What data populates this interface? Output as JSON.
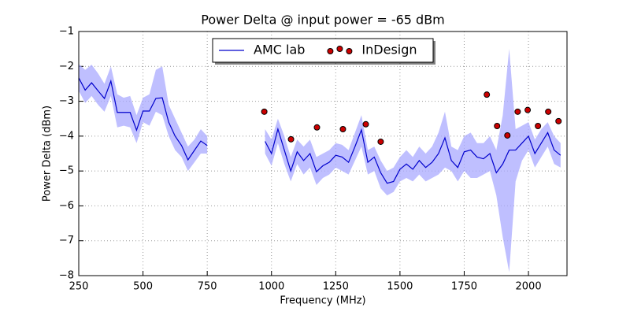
{
  "chart_data": {
    "type": "line",
    "title": "Power Delta @ input power = -65 dBm",
    "xlabel": "Frequency (MHz)",
    "ylabel": "Power Delta (dBm)",
    "xlim": [
      250,
      2150
    ],
    "ylim": [
      -8,
      -1
    ],
    "xticks": [
      250,
      500,
      750,
      1000,
      1250,
      1500,
      1750,
      2000
    ],
    "yticks": [
      {
        "value": -1,
        "label": "−1"
      },
      {
        "value": -2,
        "label": "−2"
      },
      {
        "value": -3,
        "label": "−3"
      },
      {
        "value": -4,
        "label": "−4"
      },
      {
        "value": -5,
        "label": "−5"
      },
      {
        "value": -6,
        "label": "−6"
      },
      {
        "value": -7,
        "label": "−7"
      },
      {
        "value": -8,
        "label": "−8"
      }
    ],
    "grid": true,
    "legend_loc": "upper center",
    "x": [
      250,
      275,
      300,
      325,
      350,
      375,
      400,
      425,
      450,
      475,
      500,
      525,
      550,
      575,
      600,
      625,
      650,
      675,
      700,
      725,
      750,
      775,
      800,
      825,
      850,
      875,
      900,
      925,
      950,
      975,
      1000,
      1025,
      1050,
      1075,
      1100,
      1125,
      1150,
      1175,
      1200,
      1225,
      1250,
      1275,
      1300,
      1325,
      1350,
      1375,
      1400,
      1425,
      1450,
      1475,
      1500,
      1525,
      1550,
      1575,
      1600,
      1625,
      1650,
      1675,
      1700,
      1725,
      1750,
      1775,
      1800,
      1825,
      1850,
      1875,
      1900,
      1925,
      1950,
      1975,
      2000,
      2025,
      2050,
      2075,
      2100,
      2125
    ],
    "series": [
      {
        "name": "AMC lab",
        "color": "#0000cc",
        "band_color": "#aaaaff",
        "values": [
          -2.33,
          -2.68,
          -2.47,
          -2.7,
          -2.92,
          -2.42,
          -3.32,
          -3.32,
          -3.32,
          -3.83,
          -3.28,
          -3.28,
          -2.92,
          -2.9,
          -3.6,
          -4.0,
          -4.27,
          -4.68,
          -4.41,
          -4.14,
          -4.27,
          null,
          null,
          null,
          null,
          null,
          null,
          null,
          null,
          -4.15,
          -4.5,
          -3.8,
          -4.4,
          -5.0,
          -4.45,
          -4.7,
          -4.5,
          -5.02,
          -4.85,
          -4.75,
          -4.55,
          -4.6,
          -4.75,
          -4.3,
          -3.82,
          -4.75,
          -4.6,
          -5.05,
          -5.35,
          -5.3,
          -4.95,
          -4.8,
          -4.95,
          -4.7,
          -4.9,
          -4.75,
          -4.5,
          -4.05,
          -4.7,
          -4.9,
          -4.45,
          -4.4,
          -4.6,
          -4.65,
          -4.5,
          -5.05,
          -4.8,
          -4.4,
          -4.4,
          -4.2,
          -4.0,
          -4.5,
          -4.2,
          -3.9,
          -4.4,
          -4.55
        ],
        "band_upper": [
          -1.93,
          -2.1,
          -1.95,
          -2.2,
          -2.5,
          -2.0,
          -2.8,
          -2.9,
          -2.85,
          -3.4,
          -2.9,
          -2.8,
          -2.1,
          -2.0,
          -3.1,
          -3.5,
          -3.9,
          -4.3,
          -4.1,
          -3.8,
          -4.0,
          null,
          null,
          null,
          null,
          null,
          null,
          null,
          null,
          -3.8,
          -4.1,
          -3.5,
          -4.0,
          -4.6,
          -4.1,
          -4.3,
          -4.1,
          -4.6,
          -4.5,
          -4.4,
          -4.2,
          -4.25,
          -4.4,
          -3.9,
          -3.4,
          -4.4,
          -4.3,
          -4.7,
          -5.0,
          -4.9,
          -4.6,
          -4.4,
          -4.6,
          -4.3,
          -4.5,
          -4.3,
          -3.9,
          -3.3,
          -4.3,
          -4.4,
          -4.0,
          -3.9,
          -4.2,
          -4.2,
          -4.0,
          -4.4,
          -3.4,
          -1.5,
          -3.8,
          -3.7,
          -3.6,
          -4.1,
          -3.8,
          -3.6,
          -4.0,
          -4.2
        ],
        "band_lower": [
          -2.7,
          -3.05,
          -2.85,
          -3.1,
          -3.3,
          -2.85,
          -3.75,
          -3.7,
          -3.75,
          -4.2,
          -3.6,
          -3.7,
          -3.3,
          -3.4,
          -4.0,
          -4.4,
          -4.6,
          -5.0,
          -4.75,
          -4.5,
          -4.5,
          null,
          null,
          null,
          null,
          null,
          null,
          null,
          null,
          -4.5,
          -4.85,
          -4.2,
          -4.8,
          -5.3,
          -4.8,
          -5.1,
          -4.9,
          -5.4,
          -5.2,
          -5.1,
          -4.9,
          -5.0,
          -5.1,
          -4.7,
          -4.3,
          -5.1,
          -5.0,
          -5.5,
          -5.7,
          -5.6,
          -5.3,
          -5.2,
          -5.3,
          -5.1,
          -5.3,
          -5.2,
          -5.1,
          -4.9,
          -5.0,
          -5.3,
          -5.0,
          -5.2,
          -5.2,
          -5.1,
          -5.0,
          -5.7,
          -6.9,
          -7.9,
          -5.3,
          -4.7,
          -4.4,
          -4.9,
          -4.6,
          -4.3,
          -4.8,
          -4.9
        ]
      },
      {
        "name": "InDesign",
        "type": "scatter",
        "color": "#cc0000",
        "x": [
          972,
          1076,
          1177,
          1278,
          1367,
          1425,
          1838,
          1878,
          1918,
          1958,
          1997,
          2037,
          2077,
          2117
        ],
        "values": [
          -3.3,
          -4.09,
          -3.75,
          -3.8,
          -3.66,
          -4.16,
          -2.81,
          -3.71,
          -3.98,
          -3.3,
          -3.25,
          -3.71,
          -3.3,
          -3.57
        ]
      }
    ]
  }
}
